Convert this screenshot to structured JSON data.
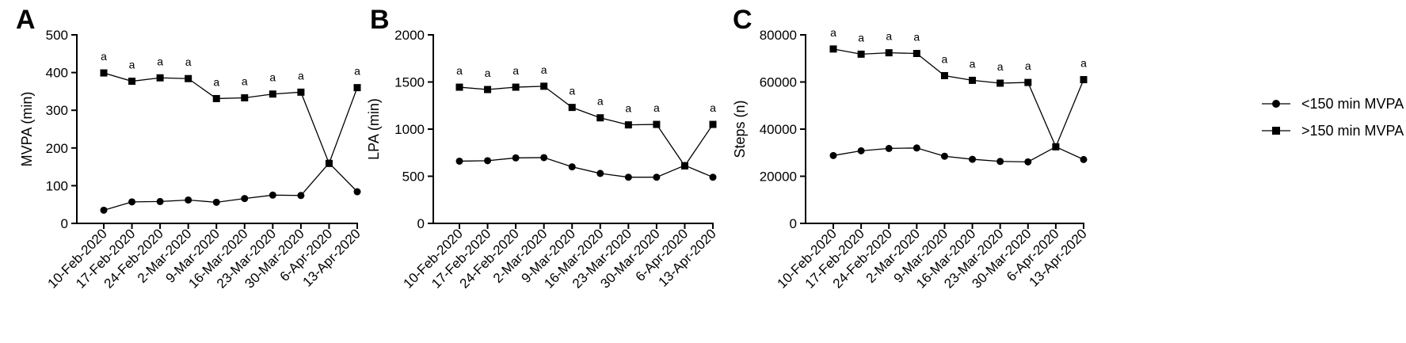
{
  "chart_data": [
    {
      "type": "line",
      "panel": "A",
      "ylabel": "MVPA (min)",
      "xlabel": "",
      "ylim": [
        0,
        500
      ],
      "yticks": [
        0,
        100,
        200,
        300,
        400,
        500
      ],
      "categories": [
        "10-Feb-2020",
        "17-Feb-2020",
        "24-Feb-2020",
        "2-Mar-2020",
        "9-Mar-2020",
        "16-Mar-2020",
        "23-Mar-2020",
        "30-Mar-2020",
        "6-Apr-2020",
        "13-Apr-2020"
      ],
      "series": [
        {
          "name": "<150 min MVPA",
          "marker": "circle",
          "values": [
            35,
            57,
            58,
            62,
            56,
            66,
            75,
            74,
            160,
            84
          ]
        },
        {
          "name": ">150 min MVPA",
          "marker": "square",
          "values": [
            399,
            377,
            386,
            384,
            331,
            333,
            343,
            348,
            159,
            360
          ]
        }
      ],
      "annotations": [
        "a",
        "a",
        "a",
        "a",
        "a",
        "a",
        "a",
        "a",
        "",
        "a"
      ]
    },
    {
      "type": "line",
      "panel": "B",
      "ylabel": "LPA (min)",
      "xlabel": "",
      "ylim": [
        0,
        2000
      ],
      "yticks": [
        0,
        500,
        1000,
        1500,
        2000
      ],
      "categories": [
        "10-Feb-2020",
        "17-Feb-2020",
        "24-Feb-2020",
        "2-Mar-2020",
        "9-Mar-2020",
        "16-Mar-2020",
        "23-Mar-2020",
        "30-Mar-2020",
        "6-Apr-2020",
        "13-Apr-2020"
      ],
      "series": [
        {
          "name": "<150 min MVPA",
          "marker": "circle",
          "values": [
            660,
            665,
            695,
            698,
            600,
            530,
            490,
            490,
            615,
            490
          ]
        },
        {
          "name": ">150 min MVPA",
          "marker": "square",
          "values": [
            1445,
            1420,
            1445,
            1455,
            1230,
            1120,
            1045,
            1050,
            610,
            1050
          ]
        }
      ],
      "annotations": [
        "a",
        "a",
        "a",
        "a",
        "a",
        "a",
        "a",
        "a",
        "",
        "a"
      ]
    },
    {
      "type": "line",
      "panel": "C",
      "ylabel": "Steps (n)",
      "xlabel": "",
      "ylim": [
        0,
        80000
      ],
      "yticks": [
        0,
        20000,
        40000,
        60000,
        80000
      ],
      "categories": [
        "10-Feb-2020",
        "17-Feb-2020",
        "24-Feb-2020",
        "2-Mar-2020",
        "9-Mar-2020",
        "16-Mar-2020",
        "23-Mar-2020",
        "30-Mar-2020",
        "6-Apr-2020",
        "13-Apr-2020"
      ],
      "series": [
        {
          "name": "<150 min MVPA",
          "marker": "circle",
          "values": [
            28800,
            30800,
            31800,
            32000,
            28500,
            27200,
            26300,
            26100,
            32500,
            27100
          ]
        },
        {
          "name": ">150 min MVPA",
          "marker": "square",
          "values": [
            74000,
            71800,
            72400,
            72100,
            62700,
            60700,
            59500,
            59800,
            32500,
            61000
          ]
        }
      ],
      "annotations": [
        "a",
        "a",
        "a",
        "a",
        "a",
        "a",
        "a",
        "a",
        "",
        "a"
      ]
    }
  ],
  "legend": {
    "position": "right",
    "items": [
      {
        "label": "<150 min MVPA",
        "marker": "circle"
      },
      {
        "label": ">150 min MVPA",
        "marker": "square"
      }
    ]
  }
}
